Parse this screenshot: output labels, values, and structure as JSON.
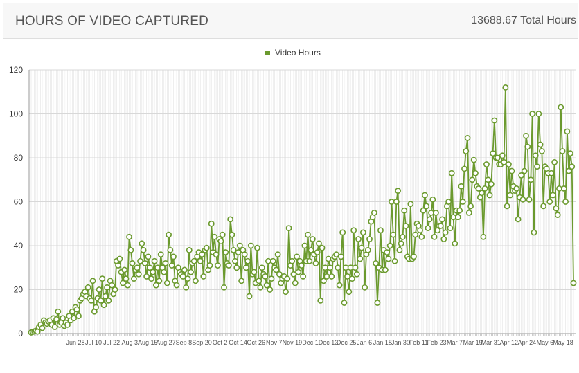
{
  "header": {
    "title": "HOURS OF VIDEO CAPTURED",
    "total": "13688.67 Total Hours"
  },
  "colors": {
    "series": "#6b9a2e",
    "marker_fill": "#ffffff",
    "grid": "#e3e3e3",
    "axis": "#333333"
  },
  "chart_data": {
    "type": "line",
    "title": "",
    "xlabel": "",
    "ylabel": "",
    "ylim": [
      0,
      120
    ],
    "yticks": [
      0,
      20,
      40,
      60,
      80,
      100,
      120
    ],
    "grid": true,
    "legend_position": "top-center",
    "x_tick_labels": [
      "Jun 28",
      "Jul 10",
      "Jul 22",
      "Aug 3",
      "Aug 15",
      "Aug 27",
      "Sep 8",
      "Sep 20",
      "Oct 2",
      "Oct 14",
      "Oct 26",
      "Nov 7",
      "Nov 19",
      "Dec 1",
      "Dec 13",
      "Dec 25",
      "Jan 6",
      "Jan 18",
      "Jan 30",
      "Feb 11",
      "Feb 23",
      "Mar 7",
      "Mar 19",
      "Mar 31",
      "Apr 12",
      "Apr 24",
      "May 6",
      "May 18"
    ],
    "series": [
      {
        "name": "Video Hours",
        "values": [
          0.5,
          0.8,
          1,
          1.3,
          0.9,
          3,
          4,
          2.5,
          6,
          5,
          4.5,
          5.5,
          6,
          4,
          7,
          3,
          6.5,
          10,
          4,
          5,
          7,
          3.5,
          5,
          4,
          8,
          6,
          10,
          7,
          12,
          11,
          8,
          15,
          16,
          18,
          19,
          17,
          21,
          16,
          15,
          24,
          10,
          12,
          16,
          20,
          15,
          25,
          13,
          17,
          21,
          15,
          24,
          22,
          18,
          20,
          33,
          31,
          34,
          28,
          23,
          29,
          25,
          22,
          44,
          38,
          32,
          25,
          29,
          30,
          27,
          33,
          41,
          38,
          32,
          26,
          35,
          30,
          25,
          28,
          33,
          22,
          30,
          24,
          36,
          30,
          28,
          32,
          23,
          45,
          38,
          31,
          35,
          24,
          22,
          30,
          28,
          27,
          26,
          29,
          21,
          25,
          38,
          28,
          32,
          33,
          24,
          35,
          37,
          33,
          36,
          26,
          38,
          39,
          29,
          31,
          50,
          37,
          44,
          36,
          31,
          43,
          42,
          45,
          21,
          37,
          32,
          31,
          52,
          45,
          38,
          33,
          30,
          37,
          40,
          24,
          38,
          36,
          30,
          33,
          17,
          40,
          27,
          28,
          23,
          39,
          24,
          21,
          30,
          27,
          26,
          22,
          33,
          20,
          25,
          33,
          30,
          29,
          36,
          27,
          23,
          25,
          26,
          19,
          25,
          48,
          31,
          33,
          27,
          23,
          35,
          28,
          33,
          31,
          26,
          40,
          33,
          45,
          33,
          38,
          43,
          36,
          32,
          37,
          41,
          15,
          39,
          24,
          30,
          26,
          34,
          30,
          26,
          34,
          35,
          36,
          30,
          22,
          35,
          46,
          14,
          30,
          26,
          19,
          30,
          25,
          47,
          30,
          27,
          43,
          34,
          39,
          46,
          21,
          36,
          38,
          43,
          51,
          53,
          55,
          32,
          14,
          30,
          47,
          29,
          38,
          29,
          37,
          34,
          40,
          60,
          45,
          33,
          60,
          65,
          38,
          41,
          44,
          56,
          49,
          35,
          34,
          59,
          34,
          35,
          45,
          50,
          49,
          47,
          44,
          56,
          63,
          58,
          48,
          52,
          55,
          61,
          44,
          55,
          47,
          49,
          49,
          52,
          43,
          46,
          58,
          60,
          48,
          73,
          53,
          41,
          56,
          53,
          56,
          67,
          60,
          75,
          83,
          89,
          55,
          58,
          70,
          79,
          73,
          67,
          66,
          62,
          64,
          44,
          66,
          77,
          70,
          63,
          68,
          82,
          97,
          80,
          80,
          77,
          77,
          81,
          78,
          112,
          58,
          77,
          63,
          74,
          67,
          65,
          66,
          52,
          62,
          72,
          61,
          74,
          90,
          85,
          61,
          70,
          100,
          46,
          81,
          76,
          100,
          86,
          83,
          58,
          76,
          75,
          73,
          60,
          73,
          63,
          78,
          57,
          54,
          66,
          103,
          83,
          66,
          60,
          92,
          74,
          82,
          76,
          23
        ]
      }
    ]
  }
}
